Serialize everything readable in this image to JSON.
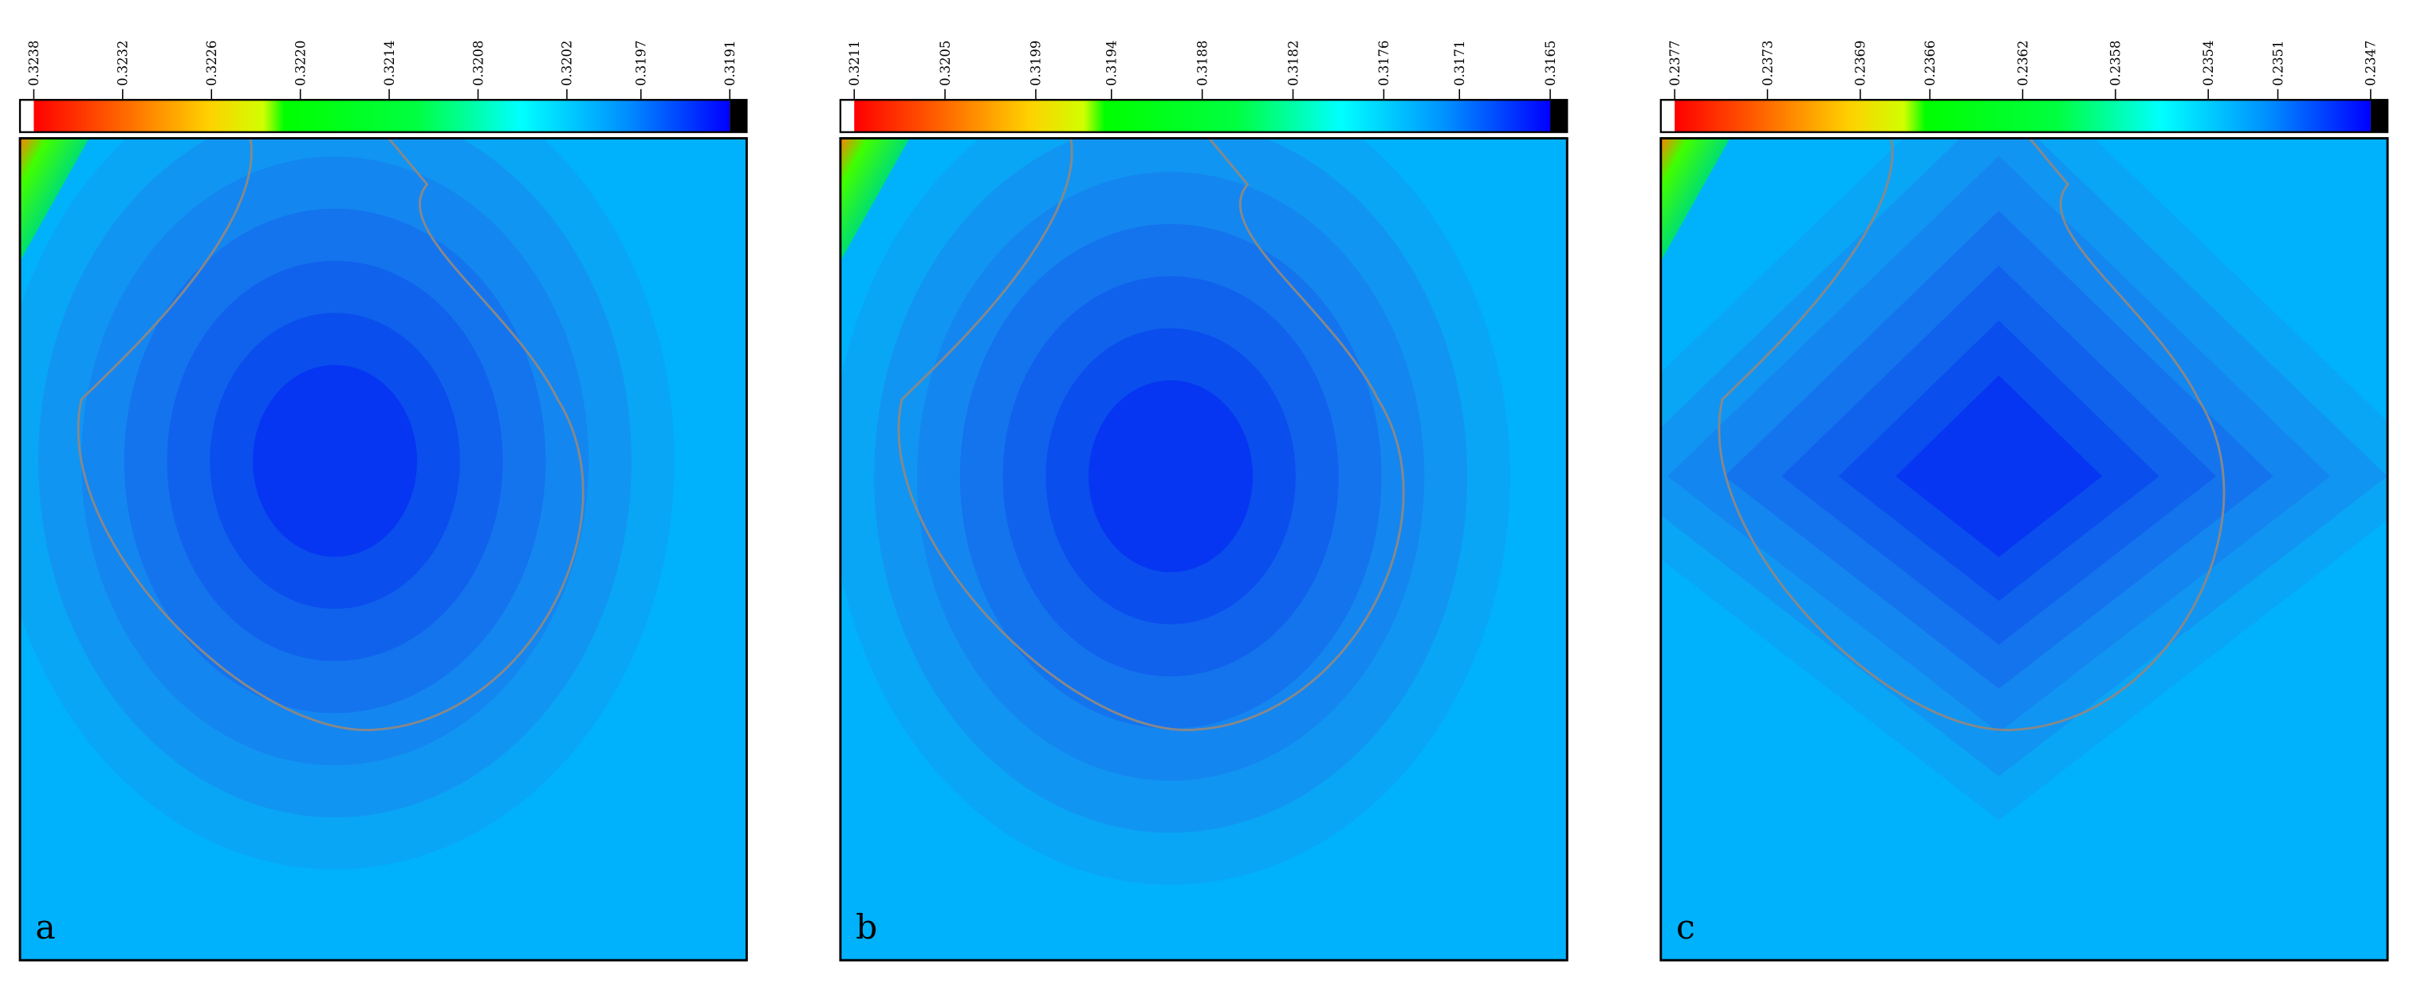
{
  "chart_data": [
    {
      "type": "contour",
      "label": "a",
      "clim": [
        0.3238,
        0.3191
      ],
      "cticks": [
        0.3238,
        0.3232,
        0.3226,
        {
          "value": 0.322,
          "label": "0.3220"
        },
        0.3214,
        0.3208,
        0.3202,
        0.3197,
        0.3191
      ]
    },
    {
      "type": "contour",
      "label": "b",
      "clim": [
        0.3211,
        0.3165
      ],
      "cticks": [
        0.3211,
        0.3205,
        0.3199,
        0.3194,
        0.3188,
        0.3182,
        0.3176,
        0.3171,
        0.3165
      ]
    },
    {
      "type": "contour",
      "label": "c",
      "clim": [
        0.2377,
        0.2347
      ],
      "cticks": [
        0.2377,
        0.2373,
        0.2369,
        0.2366,
        0.2362,
        0.2358,
        0.2354,
        0.2351,
        0.2347
      ]
    }
  ]
}
